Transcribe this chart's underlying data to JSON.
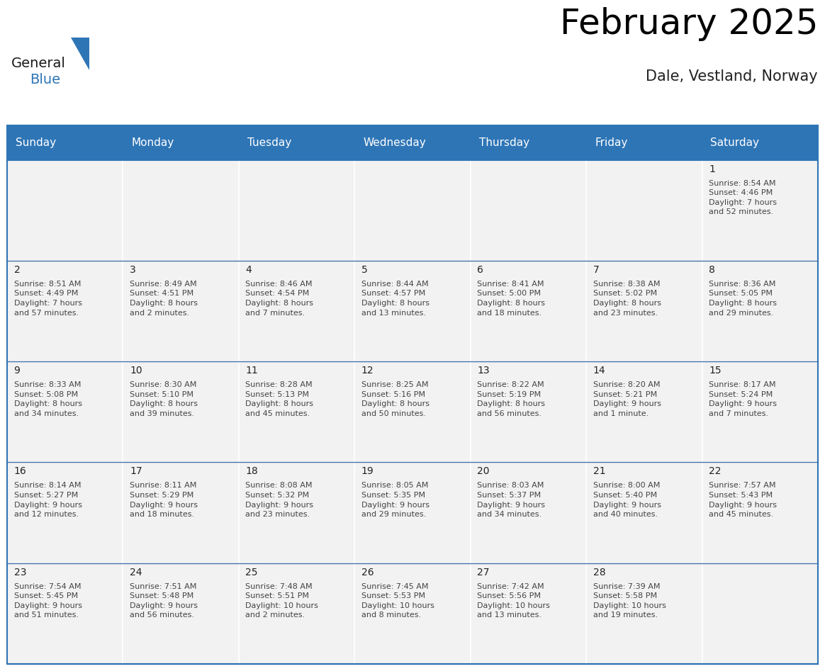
{
  "title": "February 2025",
  "subtitle": "Dale, Vestland, Norway",
  "header_color": "#2E75B6",
  "header_text_color": "#FFFFFF",
  "cell_bg_even": "#F2F2F2",
  "cell_bg_odd": "#FFFFFF",
  "border_color": "#2E75B6",
  "row_line_color": "#A0A0C0",
  "text_color": "#444444",
  "day_num_color": "#222222",
  "day_headers": [
    "Sunday",
    "Monday",
    "Tuesday",
    "Wednesday",
    "Thursday",
    "Friday",
    "Saturday"
  ],
  "title_fontsize": 36,
  "subtitle_fontsize": 15,
  "header_fontsize": 11,
  "day_num_fontsize": 10,
  "cell_fontsize": 8.0,
  "weeks": [
    [
      {
        "day": null,
        "text": ""
      },
      {
        "day": null,
        "text": ""
      },
      {
        "day": null,
        "text": ""
      },
      {
        "day": null,
        "text": ""
      },
      {
        "day": null,
        "text": ""
      },
      {
        "day": null,
        "text": ""
      },
      {
        "day": 1,
        "text": "Sunrise: 8:54 AM\nSunset: 4:46 PM\nDaylight: 7 hours\nand 52 minutes."
      }
    ],
    [
      {
        "day": 2,
        "text": "Sunrise: 8:51 AM\nSunset: 4:49 PM\nDaylight: 7 hours\nand 57 minutes."
      },
      {
        "day": 3,
        "text": "Sunrise: 8:49 AM\nSunset: 4:51 PM\nDaylight: 8 hours\nand 2 minutes."
      },
      {
        "day": 4,
        "text": "Sunrise: 8:46 AM\nSunset: 4:54 PM\nDaylight: 8 hours\nand 7 minutes."
      },
      {
        "day": 5,
        "text": "Sunrise: 8:44 AM\nSunset: 4:57 PM\nDaylight: 8 hours\nand 13 minutes."
      },
      {
        "day": 6,
        "text": "Sunrise: 8:41 AM\nSunset: 5:00 PM\nDaylight: 8 hours\nand 18 minutes."
      },
      {
        "day": 7,
        "text": "Sunrise: 8:38 AM\nSunset: 5:02 PM\nDaylight: 8 hours\nand 23 minutes."
      },
      {
        "day": 8,
        "text": "Sunrise: 8:36 AM\nSunset: 5:05 PM\nDaylight: 8 hours\nand 29 minutes."
      }
    ],
    [
      {
        "day": 9,
        "text": "Sunrise: 8:33 AM\nSunset: 5:08 PM\nDaylight: 8 hours\nand 34 minutes."
      },
      {
        "day": 10,
        "text": "Sunrise: 8:30 AM\nSunset: 5:10 PM\nDaylight: 8 hours\nand 39 minutes."
      },
      {
        "day": 11,
        "text": "Sunrise: 8:28 AM\nSunset: 5:13 PM\nDaylight: 8 hours\nand 45 minutes."
      },
      {
        "day": 12,
        "text": "Sunrise: 8:25 AM\nSunset: 5:16 PM\nDaylight: 8 hours\nand 50 minutes."
      },
      {
        "day": 13,
        "text": "Sunrise: 8:22 AM\nSunset: 5:19 PM\nDaylight: 8 hours\nand 56 minutes."
      },
      {
        "day": 14,
        "text": "Sunrise: 8:20 AM\nSunset: 5:21 PM\nDaylight: 9 hours\nand 1 minute."
      },
      {
        "day": 15,
        "text": "Sunrise: 8:17 AM\nSunset: 5:24 PM\nDaylight: 9 hours\nand 7 minutes."
      }
    ],
    [
      {
        "day": 16,
        "text": "Sunrise: 8:14 AM\nSunset: 5:27 PM\nDaylight: 9 hours\nand 12 minutes."
      },
      {
        "day": 17,
        "text": "Sunrise: 8:11 AM\nSunset: 5:29 PM\nDaylight: 9 hours\nand 18 minutes."
      },
      {
        "day": 18,
        "text": "Sunrise: 8:08 AM\nSunset: 5:32 PM\nDaylight: 9 hours\nand 23 minutes."
      },
      {
        "day": 19,
        "text": "Sunrise: 8:05 AM\nSunset: 5:35 PM\nDaylight: 9 hours\nand 29 minutes."
      },
      {
        "day": 20,
        "text": "Sunrise: 8:03 AM\nSunset: 5:37 PM\nDaylight: 9 hours\nand 34 minutes."
      },
      {
        "day": 21,
        "text": "Sunrise: 8:00 AM\nSunset: 5:40 PM\nDaylight: 9 hours\nand 40 minutes."
      },
      {
        "day": 22,
        "text": "Sunrise: 7:57 AM\nSunset: 5:43 PM\nDaylight: 9 hours\nand 45 minutes."
      }
    ],
    [
      {
        "day": 23,
        "text": "Sunrise: 7:54 AM\nSunset: 5:45 PM\nDaylight: 9 hours\nand 51 minutes."
      },
      {
        "day": 24,
        "text": "Sunrise: 7:51 AM\nSunset: 5:48 PM\nDaylight: 9 hours\nand 56 minutes."
      },
      {
        "day": 25,
        "text": "Sunrise: 7:48 AM\nSunset: 5:51 PM\nDaylight: 10 hours\nand 2 minutes."
      },
      {
        "day": 26,
        "text": "Sunrise: 7:45 AM\nSunset: 5:53 PM\nDaylight: 10 hours\nand 8 minutes."
      },
      {
        "day": 27,
        "text": "Sunrise: 7:42 AM\nSunset: 5:56 PM\nDaylight: 10 hours\nand 13 minutes."
      },
      {
        "day": 28,
        "text": "Sunrise: 7:39 AM\nSunset: 5:58 PM\nDaylight: 10 hours\nand 19 minutes."
      },
      {
        "day": null,
        "text": ""
      }
    ]
  ]
}
